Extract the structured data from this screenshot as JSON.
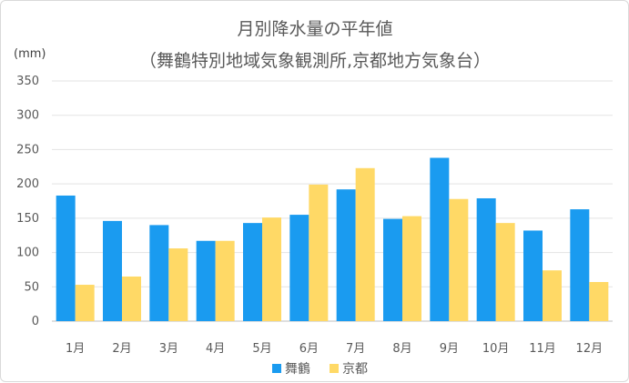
{
  "chart_data": {
    "type": "bar",
    "title": "月別降水量の平年値",
    "subtitle": "（舞鶴特別地域気象観測所,京都地方気象台）",
    "ylabel": "(mm)",
    "ylim": [
      0,
      350
    ],
    "yticks": [
      0,
      50,
      100,
      150,
      200,
      250,
      300,
      350
    ],
    "grid": true,
    "legend_position": "bottom",
    "categories": [
      "1月",
      "2月",
      "3月",
      "4月",
      "5月",
      "6月",
      "7月",
      "8月",
      "9月",
      "10月",
      "11月",
      "12月"
    ],
    "series": [
      {
        "name": "舞鶴",
        "color": "#1a9bf0",
        "values": [
          183,
          146,
          140,
          117,
          143,
          155,
          192,
          149,
          238,
          179,
          132,
          163
        ]
      },
      {
        "name": "京都",
        "color": "#ffd966",
        "values": [
          53,
          65,
          106,
          117,
          151,
          199,
          223,
          153,
          178,
          143,
          74,
          57
        ]
      }
    ]
  }
}
